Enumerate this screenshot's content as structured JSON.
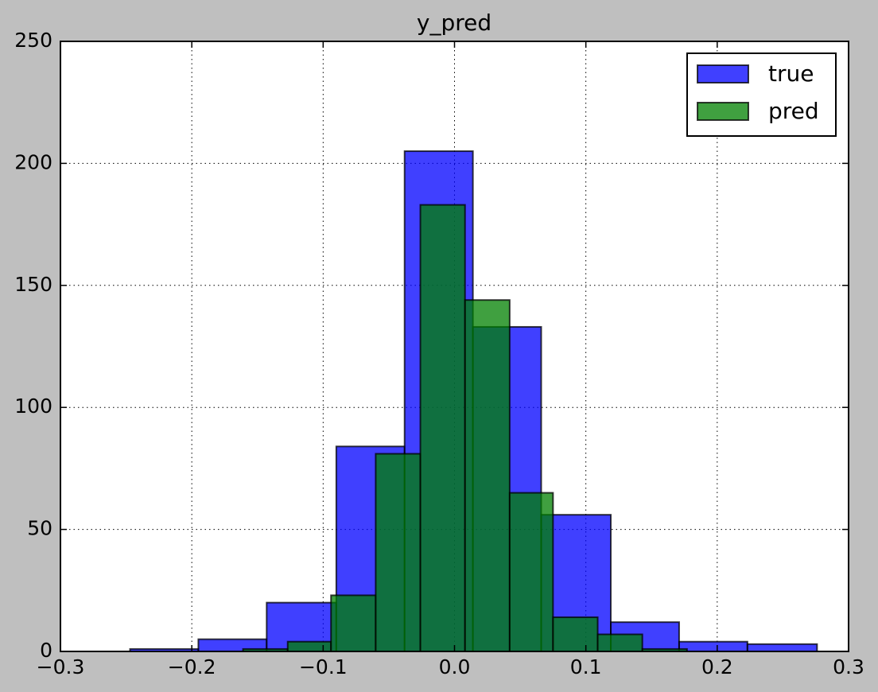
{
  "chart_data": {
    "type": "histogram",
    "title": "y_pred",
    "series": [
      {
        "name": "true",
        "color": "#0000ff",
        "bins": [
          -0.247,
          -0.195,
          -0.143,
          -0.09,
          -0.038,
          0.014,
          0.066,
          0.119,
          0.171,
          0.223,
          0.276
        ],
        "values": [
          1,
          5,
          20,
          84,
          205,
          133,
          56,
          12,
          4,
          3
        ]
      },
      {
        "name": "pred",
        "color": "#008000",
        "bins": [
          -0.161,
          -0.127,
          -0.094,
          -0.06,
          -0.026,
          0.008,
          0.042,
          0.075,
          0.109,
          0.143,
          0.177
        ],
        "values": [
          1,
          4,
          23,
          81,
          183,
          144,
          65,
          14,
          7,
          1
        ]
      }
    ],
    "xlim": [
      -0.3,
      0.3
    ],
    "xticks": [
      {
        "value": -0.3,
        "label": "−0.3"
      },
      {
        "value": -0.2,
        "label": "−0.2"
      },
      {
        "value": -0.1,
        "label": "−0.1"
      },
      {
        "value": 0,
        "label": "0.0"
      },
      0.1,
      0.2,
      0.3
    ],
    "ylim": [
      0,
      250
    ],
    "yticks": [
      0,
      50,
      100,
      150,
      200,
      250
    ],
    "grid": true,
    "legend": "upper right",
    "alpha": 0.75
  }
}
